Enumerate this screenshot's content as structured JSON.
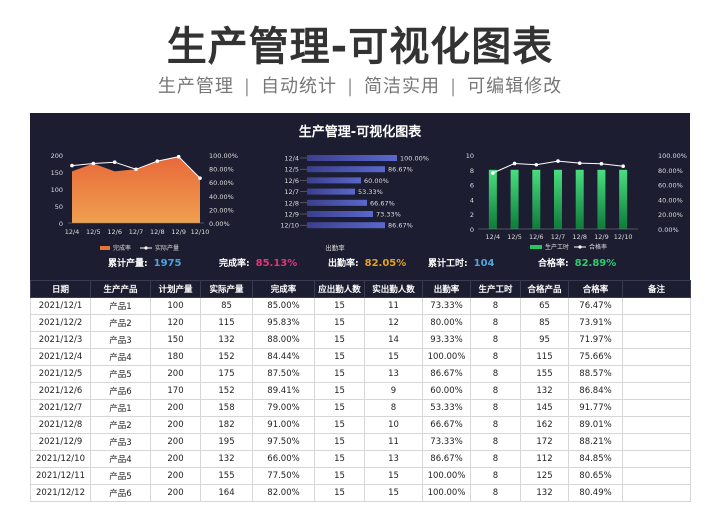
{
  "header": {
    "title": "生产管理-可视化图表",
    "subtitle_items": [
      "生产管理",
      "自动统计",
      "简洁实用",
      "可编辑修改"
    ]
  },
  "dashboard": {
    "title": "生产管理-可视化图表",
    "stats": [
      {
        "label": "累计产量:",
        "value": "1975",
        "color": "#4fa3d9"
      },
      {
        "label": "完成率:",
        "value": "85.13%",
        "color": "#e0357a"
      },
      {
        "label": "出勤率:",
        "value": "82.05%",
        "color": "#e6a020"
      },
      {
        "label": "累计工时:",
        "value": "104",
        "color": "#4fa3d9"
      },
      {
        "label": "合格率:",
        "value": "82.89%",
        "color": "#2ecc71"
      }
    ]
  },
  "chart_data": [
    {
      "type": "area",
      "categories": [
        "12/4",
        "12/5",
        "12/6",
        "12/7",
        "12/8",
        "12/9",
        "12/10"
      ],
      "series": [
        {
          "name": "完成率",
          "type": "area",
          "axis": "left",
          "values": [
            152,
            175,
            152,
            158,
            182,
            195,
            132
          ],
          "color": "#e8743b"
        },
        {
          "name": "实际产量",
          "type": "line",
          "axis": "right",
          "values": [
            0.8444,
            0.875,
            0.8941,
            0.79,
            0.91,
            0.975,
            0.66
          ],
          "color": "#ffffff"
        }
      ],
      "y_left": {
        "ticks": [
          "0",
          "50",
          "100",
          "150",
          "200"
        ],
        "ylim": [
          0,
          200
        ]
      },
      "y_right": {
        "ticks": [
          "0.00%",
          "20.00%",
          "40.00%",
          "60.00%",
          "80.00%",
          "100.00%"
        ],
        "ylim": [
          0,
          1
        ]
      }
    },
    {
      "type": "bar",
      "orientation": "horizontal",
      "categories": [
        "12/4",
        "12/5",
        "12/6",
        "12/7",
        "12/8",
        "12/9",
        "12/10"
      ],
      "values": [
        1.0,
        0.8667,
        0.6,
        0.5333,
        0.6667,
        0.7333,
        0.8667
      ],
      "data_labels": [
        "100.00%",
        "86.67%",
        "60.00%",
        "53.33%",
        "66.67%",
        "73.33%",
        "86.67%"
      ],
      "xlabel": "出勤率",
      "color": "#4a56b8"
    },
    {
      "type": "bar",
      "categories": [
        "12/4",
        "12/5",
        "12/6",
        "12/7",
        "12/8",
        "12/9",
        "12/10"
      ],
      "series": [
        {
          "name": "生产工时",
          "type": "bar",
          "axis": "left",
          "values": [
            8,
            8,
            8,
            8,
            8,
            8,
            8
          ],
          "color": "#22c55e"
        },
        {
          "name": "合格率",
          "type": "line",
          "axis": "right",
          "values": [
            0.7566,
            0.8857,
            0.8684,
            0.9177,
            0.8901,
            0.8821,
            0.8485
          ],
          "color": "#ffffff"
        }
      ],
      "y_left": {
        "ticks": [
          "0",
          "2",
          "4",
          "6",
          "8",
          "10"
        ],
        "ylim": [
          0,
          10
        ]
      },
      "y_right": {
        "ticks": [
          "0.00%",
          "20.00%",
          "40.00%",
          "60.00%",
          "80.00%",
          "100.00%"
        ],
        "ylim": [
          0,
          1
        ]
      }
    }
  ],
  "table": {
    "headers": [
      "日期",
      "生产产品",
      "计划产量",
      "实际产量",
      "完成率",
      "应出勤人数",
      "实出勤人数",
      "出勤率",
      "生产工时",
      "合格产品",
      "合格率",
      "备注"
    ],
    "rows": [
      [
        "2021/12/1",
        "产品1",
        "100",
        "85",
        "85.00%",
        "15",
        "11",
        "73.33%",
        "8",
        "65",
        "76.47%",
        ""
      ],
      [
        "2021/12/2",
        "产品2",
        "120",
        "115",
        "95.83%",
        "15",
        "12",
        "80.00%",
        "8",
        "85",
        "73.91%",
        ""
      ],
      [
        "2021/12/3",
        "产品3",
        "150",
        "132",
        "88.00%",
        "15",
        "14",
        "93.33%",
        "8",
        "95",
        "71.97%",
        ""
      ],
      [
        "2021/12/4",
        "产品4",
        "180",
        "152",
        "84.44%",
        "15",
        "15",
        "100.00%",
        "8",
        "115",
        "75.66%",
        ""
      ],
      [
        "2021/12/5",
        "产品5",
        "200",
        "175",
        "87.50%",
        "15",
        "13",
        "86.67%",
        "8",
        "155",
        "88.57%",
        ""
      ],
      [
        "2021/12/6",
        "产品6",
        "170",
        "152",
        "89.41%",
        "15",
        "9",
        "60.00%",
        "8",
        "132",
        "86.84%",
        ""
      ],
      [
        "2021/12/7",
        "产品1",
        "200",
        "158",
        "79.00%",
        "15",
        "8",
        "53.33%",
        "8",
        "145",
        "91.77%",
        ""
      ],
      [
        "2021/12/8",
        "产品2",
        "200",
        "182",
        "91.00%",
        "15",
        "10",
        "66.67%",
        "8",
        "162",
        "89.01%",
        ""
      ],
      [
        "2021/12/9",
        "产品3",
        "200",
        "195",
        "97.50%",
        "15",
        "11",
        "73.33%",
        "8",
        "172",
        "88.21%",
        ""
      ],
      [
        "2021/12/10",
        "产品4",
        "200",
        "132",
        "66.00%",
        "15",
        "13",
        "86.67%",
        "8",
        "112",
        "84.85%",
        ""
      ],
      [
        "2021/12/11",
        "产品5",
        "200",
        "155",
        "77.50%",
        "15",
        "15",
        "100.00%",
        "8",
        "125",
        "80.65%",
        ""
      ],
      [
        "2021/12/12",
        "产品6",
        "200",
        "164",
        "82.00%",
        "15",
        "15",
        "100.00%",
        "8",
        "132",
        "80.49%",
        ""
      ]
    ]
  }
}
